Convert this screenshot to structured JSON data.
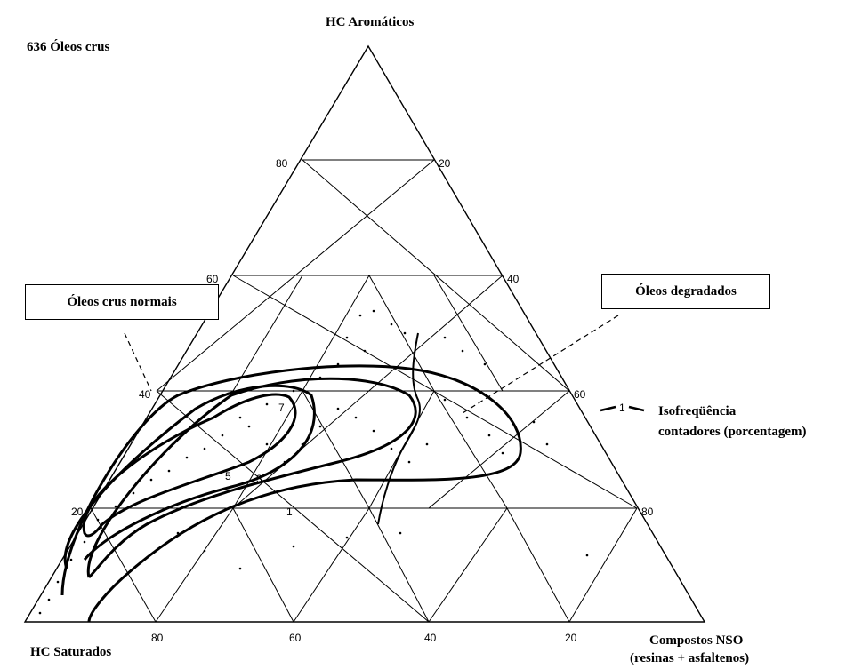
{
  "title": "636 Óleos crus",
  "vertices": {
    "top": "HC Aromáticos",
    "left": "HC Saturados",
    "right_line1": "Compostos NSO",
    "right_line2": "(resinas + asfaltenos)"
  },
  "ticks": {
    "left_side": [
      "80",
      "60",
      "40",
      "20"
    ],
    "right_side": [
      "20",
      "40",
      "60",
      "80"
    ],
    "base": [
      "80",
      "60",
      "40",
      "20"
    ]
  },
  "callouts": {
    "normal": "Óleos crus normais",
    "degraded": "Óleos degradados"
  },
  "contour_labels": [
    "7",
    "5",
    "3",
    "1"
  ],
  "legend": {
    "symbol": "1",
    "line1": "Isofreqüência",
    "line2": "contadores (porcentagem)"
  },
  "colors": {
    "ink": "#000000",
    "background": "#ffffff"
  }
}
